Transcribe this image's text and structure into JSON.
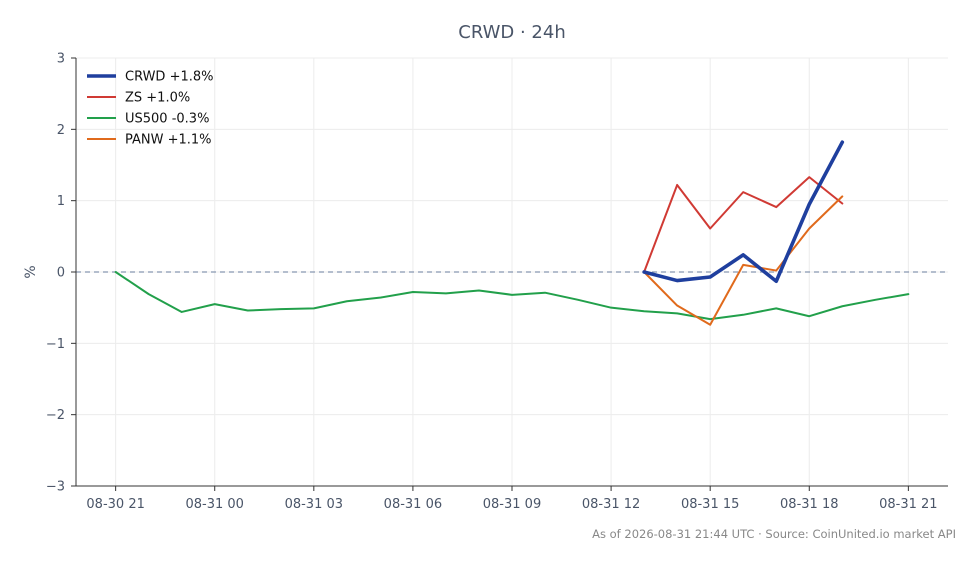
{
  "chart_data": {
    "type": "line",
    "title": "CRWD · 24h",
    "xlabel": "",
    "ylabel": "%",
    "ylim": [
      -3,
      3
    ],
    "yticks": [
      -3,
      -2,
      -1,
      0,
      1,
      2,
      3
    ],
    "ytick_labels": [
      "−3",
      "−2",
      "−1",
      "0",
      "1",
      "2",
      "3"
    ],
    "xticks": [
      {
        "label": "08-30 21",
        "t": 0
      },
      {
        "label": "08-31 00",
        "t": 3
      },
      {
        "label": "08-31 03",
        "t": 6
      },
      {
        "label": "08-31 06",
        "t": 9
      },
      {
        "label": "08-31 09",
        "t": 12
      },
      {
        "label": "08-31 12",
        "t": 15
      },
      {
        "label": "08-31 15",
        "t": 18
      },
      {
        "label": "08-31 18",
        "t": 21
      },
      {
        "label": "08-31 21",
        "t": 24
      }
    ],
    "xlim": [
      -1.2,
      25.2
    ],
    "grid": true,
    "zero_line": true,
    "legend_position": "top-left",
    "series": [
      {
        "name": "CRWD +1.8%",
        "color": "#1f3f9e",
        "width": 3.6,
        "t": [
          16,
          17,
          18,
          19,
          20,
          21,
          22
        ],
        "values": [
          0.0,
          -0.12,
          -0.07,
          0.24,
          -0.13,
          0.95,
          1.82
        ]
      },
      {
        "name": "ZS +1.0%",
        "color": "#d03a34",
        "width": 2,
        "t": [
          16,
          17,
          18,
          19,
          20,
          21,
          22
        ],
        "values": [
          0.0,
          1.22,
          0.61,
          1.12,
          0.91,
          1.33,
          0.96
        ]
      },
      {
        "name": "US500 -0.3%",
        "color": "#22a04b",
        "width": 2,
        "t": [
          0,
          1,
          2,
          3,
          4,
          5,
          6,
          7,
          8,
          9,
          10,
          11,
          12,
          13,
          14,
          15,
          16,
          17,
          18,
          19,
          20,
          21,
          22,
          23,
          24
        ],
        "values": [
          0.0,
          -0.31,
          -0.56,
          -0.45,
          -0.54,
          -0.52,
          -0.51,
          -0.41,
          -0.36,
          -0.28,
          -0.3,
          -0.26,
          -0.32,
          -0.29,
          -0.39,
          -0.5,
          -0.55,
          -0.58,
          -0.66,
          -0.6,
          -0.51,
          -0.62,
          -0.48,
          -0.39,
          -0.31
        ]
      },
      {
        "name": "PANW +1.1%",
        "color": "#e06a1c",
        "width": 2,
        "t": [
          16,
          17,
          18,
          19,
          20,
          21,
          22
        ],
        "values": [
          0.0,
          -0.47,
          -0.74,
          0.1,
          0.02,
          0.61,
          1.06
        ]
      }
    ]
  },
  "footer": "As of 2026-08-31 21:44 UTC · Source: CoinUnited.io market API"
}
